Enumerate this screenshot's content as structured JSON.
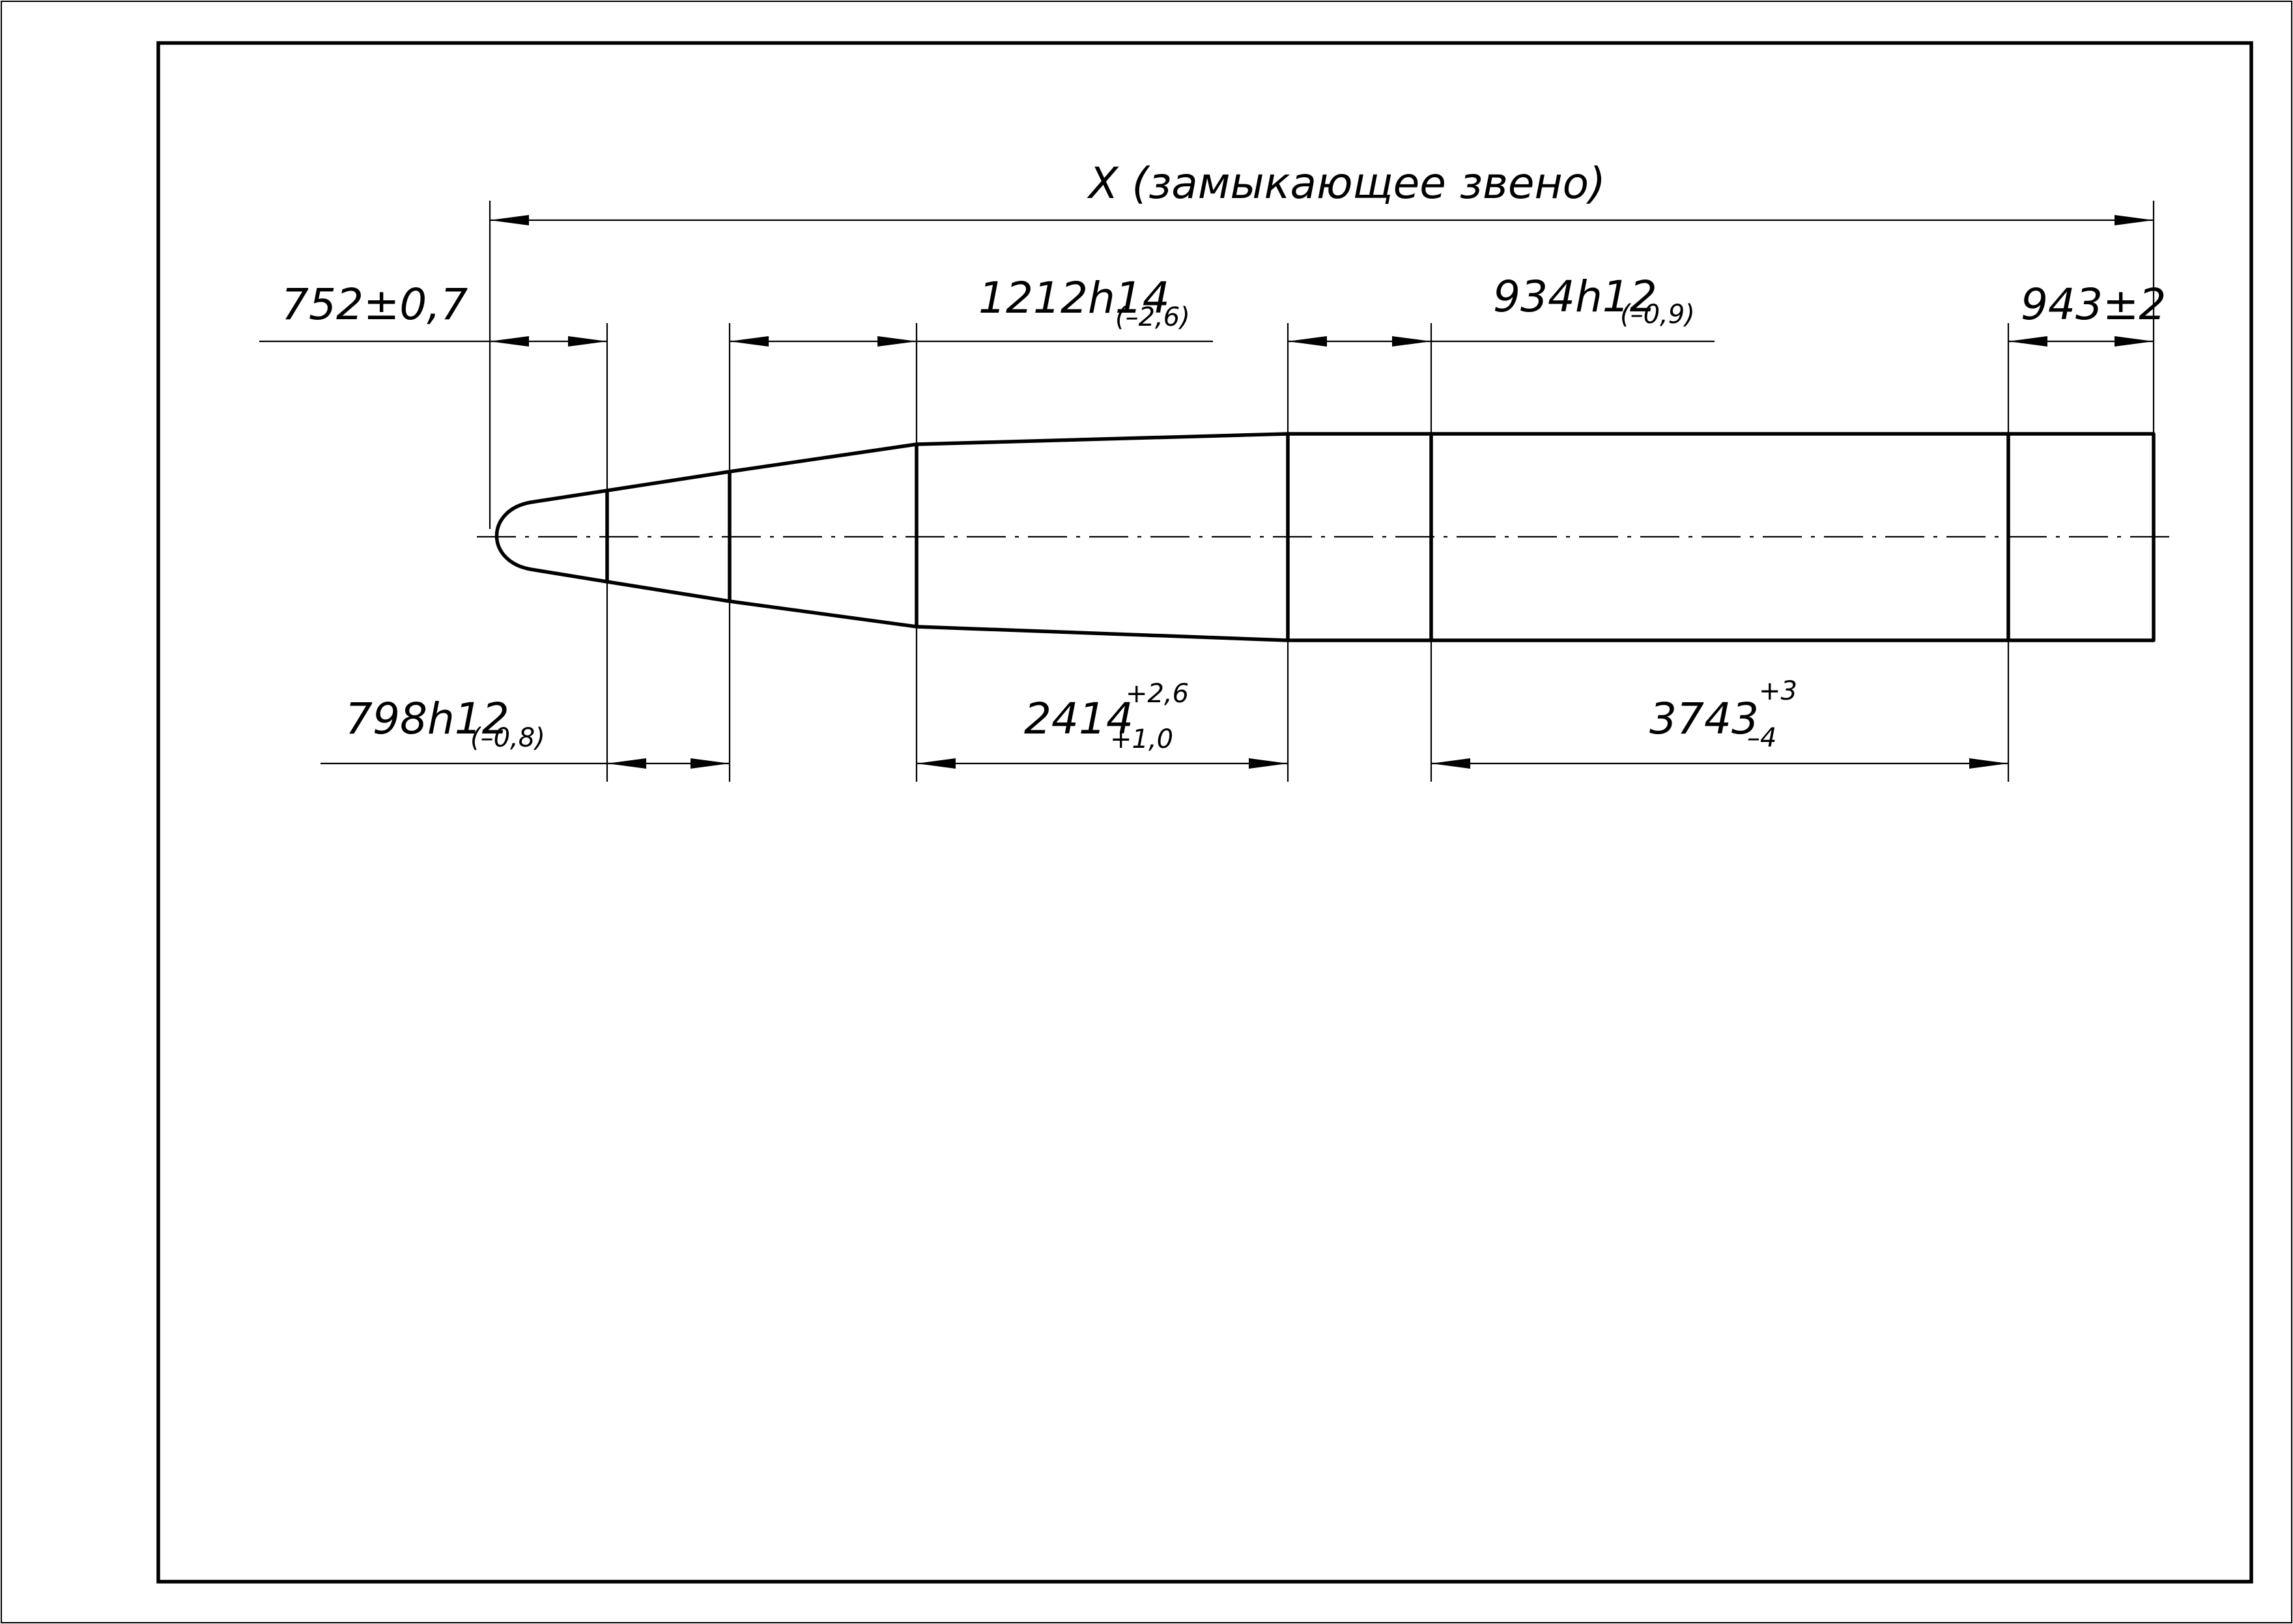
{
  "dimensions": {
    "closing_link": {
      "text": "X (замыкающее звено)"
    },
    "d752": {
      "nominal": "752±0,7"
    },
    "d798": {
      "nominal": "798h12",
      "lower": "(–0,8)"
    },
    "d1212": {
      "nominal": "1212h14",
      "lower": "(–2,6)"
    },
    "d2414": {
      "nominal": "2414",
      "upper": "+2,6",
      "lower": "+1,0"
    },
    "d934": {
      "nominal": "934h12",
      "lower": "(–0,9)"
    },
    "d3743": {
      "nominal": "3743",
      "upper": "+3",
      "lower": "–4"
    },
    "d943": {
      "nominal": "943±2"
    }
  }
}
